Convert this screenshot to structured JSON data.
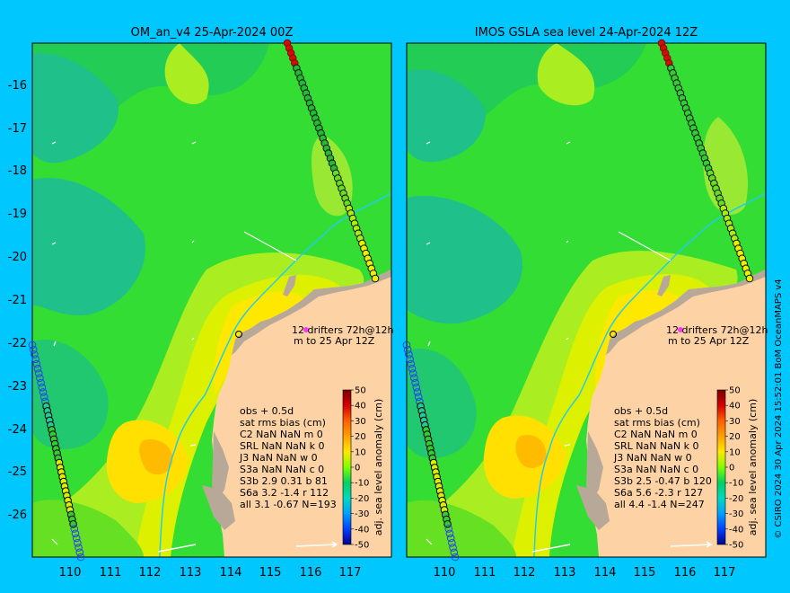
{
  "panels": [
    {
      "title": "OM_an_v4  25-Apr-2024 00Z",
      "drifters_line1": "12 drifters 72h@12h",
      "drifters_line2": "m  to 25 Apr 12Z",
      "stats": [
        "obs + 0.5d",
        "sat rms bias (cm)",
        "C2    NaN NaN m 0",
        "SRL   NaN NaN k 0",
        "J3    NaN NaN w 0",
        "S3a   NaN NaN c 0",
        "S3b  2.9 0.31 b 81",
        "S6a  3.2 -1.4 r 112",
        "all  3.1 -0.67 N=193"
      ]
    },
    {
      "title": "IMOS GSLA sea level  24-Apr-2024 12Z",
      "drifters_line1": "12 drifters 72h@12h",
      "drifters_line2": "m  to 25 Apr 12Z",
      "stats": [
        "obs + 0.5d",
        "sat rms bias (cm)",
        "C2    NaN NaN m 0",
        "SRL   NaN NaN k 0",
        "J3    NaN NaN w 0",
        "S3a   NaN NaN c 0",
        "S3b  2.5 -0.47 b 120",
        "S6a  5.6 -2.3 r 127",
        "all  4.4 -1.4 N=247"
      ]
    }
  ],
  "colorbar": {
    "label": "adj. sea level anomaly (cm)",
    "ticks": [
      "50",
      "40",
      "30",
      "20",
      "10",
      "0",
      "-10",
      "-20",
      "-30",
      "-40",
      "-50"
    ]
  },
  "axes": {
    "lat_labels": [
      "-16",
      "-17",
      "-18",
      "-19",
      "-20",
      "-21",
      "-22",
      "-23",
      "-24",
      "-25",
      "-26"
    ],
    "lon_labels": [
      "110",
      "111",
      "112",
      "113",
      "114",
      "115",
      "116",
      "117"
    ]
  },
  "credit": "© CSIRO 2024   30 Apr 2024 15:52:01 BoM OceanMAPS v4",
  "colors": {
    "background": "#00c8ff",
    "land": "#fdd3a6",
    "coast_shelf": "#b8a898"
  }
}
